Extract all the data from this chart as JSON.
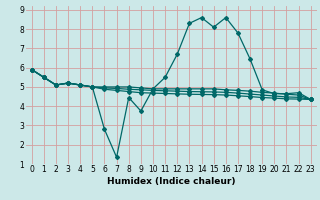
{
  "xlabel": "Humidex (Indice chaleur)",
  "bg_color": "#cce8e8",
  "grid_color": "#d4a0a0",
  "line_color": "#006868",
  "xlim": [
    -0.5,
    23.5
  ],
  "ylim": [
    1,
    9.2
  ],
  "xticks": [
    0,
    1,
    2,
    3,
    4,
    5,
    6,
    7,
    8,
    9,
    10,
    11,
    12,
    13,
    14,
    15,
    16,
    17,
    18,
    19,
    20,
    21,
    22,
    23
  ],
  "yticks": [
    1,
    2,
    3,
    4,
    5,
    6,
    7,
    8,
    9
  ],
  "line1_x": [
    0,
    1,
    2,
    3,
    4,
    5,
    6,
    7,
    8,
    9,
    10,
    11,
    12,
    13,
    14,
    15,
    16,
    17,
    18,
    19,
    20,
    21,
    22,
    23
  ],
  "line1_y": [
    5.9,
    5.5,
    5.1,
    5.2,
    5.1,
    5.0,
    2.8,
    1.35,
    4.45,
    3.75,
    4.9,
    5.5,
    6.7,
    8.3,
    8.6,
    8.1,
    8.6,
    7.8,
    6.45,
    4.85,
    4.65,
    4.65,
    4.7,
    4.35
  ],
  "line2_x": [
    0,
    1,
    2,
    3,
    4,
    5,
    6,
    7,
    8,
    9,
    10,
    11,
    12,
    13,
    14,
    15,
    16,
    17,
    18,
    19,
    20,
    21,
    22,
    23
  ],
  "line2_y": [
    5.9,
    5.5,
    5.1,
    5.2,
    5.1,
    5.0,
    5.0,
    5.0,
    5.0,
    4.95,
    4.9,
    4.9,
    4.9,
    4.9,
    4.9,
    4.9,
    4.85,
    4.82,
    4.78,
    4.72,
    4.68,
    4.62,
    4.58,
    4.35
  ],
  "line3_x": [
    0,
    1,
    2,
    3,
    4,
    5,
    6,
    7,
    8,
    9,
    10,
    11,
    12,
    13,
    14,
    15,
    16,
    17,
    18,
    19,
    20,
    21,
    22,
    23
  ],
  "line3_y": [
    5.9,
    5.5,
    5.1,
    5.2,
    5.1,
    5.0,
    4.95,
    4.92,
    4.88,
    4.85,
    4.82,
    4.8,
    4.78,
    4.76,
    4.75,
    4.74,
    4.72,
    4.68,
    4.63,
    4.58,
    4.53,
    4.48,
    4.46,
    4.35
  ],
  "line4_x": [
    0,
    1,
    2,
    3,
    4,
    5,
    6,
    7,
    8,
    9,
    10,
    11,
    12,
    13,
    14,
    15,
    16,
    17,
    18,
    19,
    20,
    21,
    22,
    23
  ],
  "line4_y": [
    5.9,
    5.5,
    5.1,
    5.2,
    5.1,
    5.0,
    4.88,
    4.82,
    4.76,
    4.7,
    4.68,
    4.66,
    4.64,
    4.62,
    4.61,
    4.6,
    4.58,
    4.54,
    4.5,
    4.45,
    4.42,
    4.38,
    4.37,
    4.35
  ]
}
